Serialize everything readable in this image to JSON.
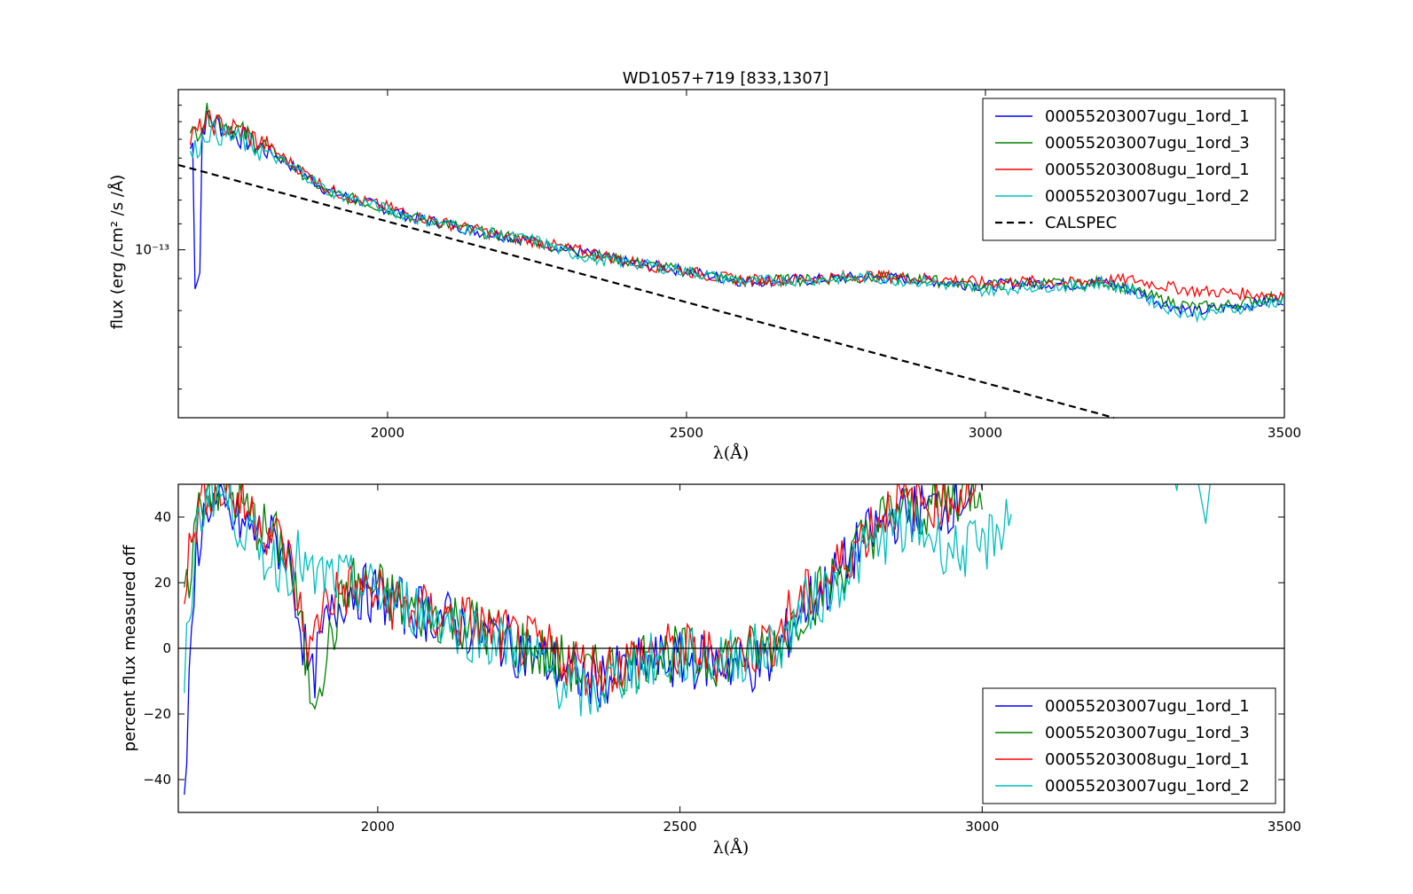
{
  "chart_data": [
    {
      "type": "line",
      "title": "WD1057+719 [833,1307]",
      "xlabel": "λ(Å)",
      "ylabel": "flux (erg /cm² /s /Å)",
      "xlim": [
        1650,
        3500
      ],
      "ylim_log": [
        5.4e-14,
        1.8e-13
      ],
      "yscale": "log",
      "x_ticks": [
        2000,
        2500,
        3000,
        3500
      ],
      "y_tick_label": "10⁻¹³",
      "y_tick_value": 1e-13,
      "legend_position": "upper right",
      "series": [
        {
          "name": "00055203007ugu_1ord_1",
          "color": "#0000ff",
          "style": "solid",
          "x": [
            1670,
            1700,
            1750,
            1800,
            1850,
            1900,
            1950,
            2000,
            2050,
            2100,
            2150,
            2200,
            2250,
            2300,
            2350,
            2400,
            2450,
            2500,
            2550,
            2600,
            2650,
            2700,
            2750,
            2800,
            2850,
            2900,
            2950,
            3000,
            3050,
            3100,
            3150,
            3200,
            3250,
            3300,
            3350,
            3400,
            3450,
            3500
          ],
          "values": [
            1.45e-13,
            1.62e-13,
            1.52e-13,
            1.44e-13,
            1.34e-13,
            1.24e-13,
            1.2e-13,
            1.16e-13,
            1.12e-13,
            1.1e-13,
            1.07e-13,
            1.05e-13,
            1.03e-13,
            1e-13,
            9.8e-14,
            9.55e-14,
            9.4e-14,
            9.25e-14,
            9.05e-14,
            8.9e-14,
            8.95e-14,
            8.95e-14,
            9e-14,
            9.05e-14,
            9e-14,
            8.95e-14,
            8.85e-14,
            8.75e-14,
            8.85e-14,
            8.85e-14,
            8.8e-14,
            8.9e-14,
            8.6e-14,
            8.2e-14,
            7.95e-14,
            8.1e-14,
            8.2e-14,
            8.35e-14
          ]
        },
        {
          "name": "00055203007ugu_1ord_3",
          "color": "#008000",
          "style": "solid",
          "x": [
            1670,
            1700,
            1750,
            1800,
            1850,
            1900,
            1950,
            2000,
            2050,
            2100,
            2150,
            2200,
            2250,
            2300,
            2350,
            2400,
            2450,
            2500,
            2550,
            2600,
            2650,
            2700,
            2750,
            2800,
            2850,
            2900,
            2950,
            3000,
            3050,
            3100,
            3150,
            3200,
            3250,
            3300,
            3350,
            3400,
            3450,
            3500
          ],
          "values": [
            1.5e-13,
            1.65e-13,
            1.55e-13,
            1.45e-13,
            1.34e-13,
            1.23e-13,
            1.2e-13,
            1.16e-13,
            1.12e-13,
            1.1e-13,
            1.07e-13,
            1.05e-13,
            1.03e-13,
            1e-13,
            9.8e-14,
            9.6e-14,
            9.4e-14,
            9.25e-14,
            9.05e-14,
            8.9e-14,
            8.95e-14,
            8.95e-14,
            9e-14,
            9.05e-14,
            9e-14,
            8.95e-14,
            8.85e-14,
            8.75e-14,
            8.85e-14,
            8.85e-14,
            8.8e-14,
            8.9e-14,
            8.6e-14,
            8.3e-14,
            8.1e-14,
            8.15e-14,
            8.3e-14,
            8.45e-14
          ]
        },
        {
          "name": "00055203008ugu_1ord_1",
          "color": "#ff0000",
          "style": "solid",
          "x": [
            1670,
            1700,
            1750,
            1800,
            1850,
            1900,
            1950,
            2000,
            2050,
            2100,
            2150,
            2200,
            2250,
            2300,
            2350,
            2400,
            2450,
            2500,
            2550,
            2600,
            2650,
            2700,
            2750,
            2800,
            2850,
            2900,
            2950,
            3000,
            3050,
            3100,
            3150,
            3200,
            3250,
            3300,
            3350,
            3400,
            3450,
            3500
          ],
          "values": [
            1.5e-13,
            1.6e-13,
            1.55e-13,
            1.46e-13,
            1.35e-13,
            1.25e-13,
            1.2e-13,
            1.17e-13,
            1.13e-13,
            1.1e-13,
            1.075e-13,
            1.05e-13,
            1.03e-13,
            1.005e-13,
            9.85e-14,
            9.6e-14,
            9.4e-14,
            9.25e-14,
            9.05e-14,
            8.95e-14,
            8.95e-14,
            9e-14,
            9.05e-14,
            9.1e-14,
            9.05e-14,
            9e-14,
            8.95e-14,
            8.85e-14,
            8.9e-14,
            8.9e-14,
            8.85e-14,
            8.95e-14,
            8.95e-14,
            8.75e-14,
            8.6e-14,
            8.55e-14,
            8.5e-14,
            8.5e-14
          ]
        },
        {
          "name": "00055203007ugu_1ord_2",
          "color": "#00bfbf",
          "style": "solid",
          "x": [
            1670,
            1700,
            1750,
            1800,
            1850,
            1900,
            1950,
            2000,
            2050,
            2100,
            2150,
            2200,
            2250,
            2300,
            2350,
            2400,
            2450,
            2500,
            2550,
            2600,
            2650,
            2700,
            2750,
            2800,
            2850,
            2900,
            2950,
            3000,
            3050,
            3100,
            3150,
            3200,
            3250,
            3300,
            3350,
            3400,
            3450,
            3500
          ],
          "values": [
            1.4e-13,
            1.55e-13,
            1.5e-13,
            1.42e-13,
            1.34e-13,
            1.24e-13,
            1.2e-13,
            1.16e-13,
            1.12e-13,
            1.1e-13,
            1.07e-13,
            1.05e-13,
            1.035e-13,
            9.9e-14,
            9.65e-14,
            9.55e-14,
            9.4e-14,
            9.25e-14,
            9.05e-14,
            8.9e-14,
            8.95e-14,
            8.95e-14,
            9e-14,
            9.05e-14,
            8.95e-14,
            8.9e-14,
            8.75e-14,
            8.6e-14,
            8.7e-14,
            8.75e-14,
            8.75e-14,
            8.85e-14,
            8.55e-14,
            8.1e-14,
            7.85e-14,
            8e-14,
            8.15e-14,
            8.3e-14
          ]
        },
        {
          "name": "CALSPEC",
          "color": "#000000",
          "style": "dashed",
          "x": [
            1650,
            3215
          ],
          "values": [
            1.365e-13,
            5.4e-14
          ]
        }
      ]
    },
    {
      "type": "line",
      "title": "",
      "xlabel": "λ(Å)",
      "ylabel": "percent flux measured off",
      "xlim": [
        1670,
        3500
      ],
      "ylim": [
        -50,
        50
      ],
      "x_ticks": [
        2000,
        2500,
        3000,
        3500
      ],
      "y_ticks": [
        -40,
        -20,
        0,
        20,
        40
      ],
      "legend_position": "lower right",
      "zero_line": 0,
      "series": [
        {
          "name": "00055203007ugu_1ord_1",
          "color": "#0000ff",
          "x": [
            1680,
            1700,
            1720,
            1750,
            1800,
            1850,
            1870,
            1890,
            1910,
            1950,
            2000,
            2050,
            2100,
            2150,
            2200,
            2250,
            2300,
            2350,
            2400,
            2450,
            2500,
            2550,
            2600,
            2650,
            2680,
            2700,
            2750,
            2800,
            2850,
            2900,
            2950,
            3000
          ],
          "values": [
            -45,
            30,
            45,
            40,
            35,
            30,
            10,
            -12,
            5,
            18,
            16,
            12,
            10,
            6,
            3,
            -2,
            -6,
            -10,
            -8,
            -4,
            -4,
            -4,
            -5,
            -5,
            5,
            12,
            20,
            32,
            40,
            42,
            44,
            50
          ]
        },
        {
          "name": "00055203007ugu_1ord_3",
          "color": "#008000",
          "x": [
            1680,
            1700,
            1720,
            1750,
            1800,
            1850,
            1870,
            1890,
            1910,
            1950,
            2000,
            2050,
            2100,
            2150,
            2200,
            2250,
            2300,
            2350,
            2400,
            2450,
            2500,
            2550,
            2600,
            2650,
            2680,
            2700,
            2750,
            2800,
            2850,
            2900,
            2950,
            3000
          ],
          "values": [
            10,
            40,
            50,
            48,
            38,
            30,
            10,
            -15,
            -5,
            20,
            18,
            12,
            10,
            8,
            4,
            0,
            -4,
            -8,
            -6,
            -2,
            -2,
            -3,
            -2,
            0,
            6,
            12,
            20,
            32,
            42,
            42,
            46,
            50
          ]
        },
        {
          "name": "00055203008ugu_1ord_1",
          "color": "#ff0000",
          "x": [
            1680,
            1700,
            1720,
            1750,
            1800,
            1850,
            1870,
            1890,
            1910,
            1950,
            2000,
            2050,
            2100,
            2150,
            2200,
            2250,
            2300,
            2350,
            2400,
            2450,
            2500,
            2550,
            2600,
            2650,
            2680,
            2700,
            2750,
            2800,
            2850,
            2900,
            2950,
            3000
          ],
          "values": [
            20,
            40,
            50,
            48,
            40,
            30,
            12,
            -2,
            15,
            18,
            16,
            12,
            10,
            8,
            4,
            1,
            -2,
            -6,
            -5,
            -1,
            -1,
            -2,
            -1,
            2,
            10,
            14,
            22,
            34,
            44,
            44,
            46,
            50
          ]
        },
        {
          "name": "00055203007ugu_1ord_2",
          "color": "#00bfbf",
          "x": [
            1680,
            1700,
            1720,
            1750,
            1800,
            1850,
            1870,
            1890,
            1910,
            1950,
            2000,
            2050,
            2100,
            2150,
            2200,
            2250,
            2300,
            2350,
            2400,
            2450,
            2500,
            2550,
            2600,
            2650,
            2680,
            2700,
            2750,
            2800,
            2850,
            2900,
            2950,
            3000,
            3050
          ],
          "values": [
            -10,
            35,
            50,
            45,
            30,
            24,
            28,
            20,
            22,
            20,
            17,
            13,
            10,
            5,
            2,
            -2,
            -10,
            -15,
            -8,
            -4,
            -3,
            -3,
            -2,
            0,
            4,
            12,
            18,
            28,
            36,
            36,
            30,
            30,
            42
          ]
        }
      ]
    }
  ]
}
